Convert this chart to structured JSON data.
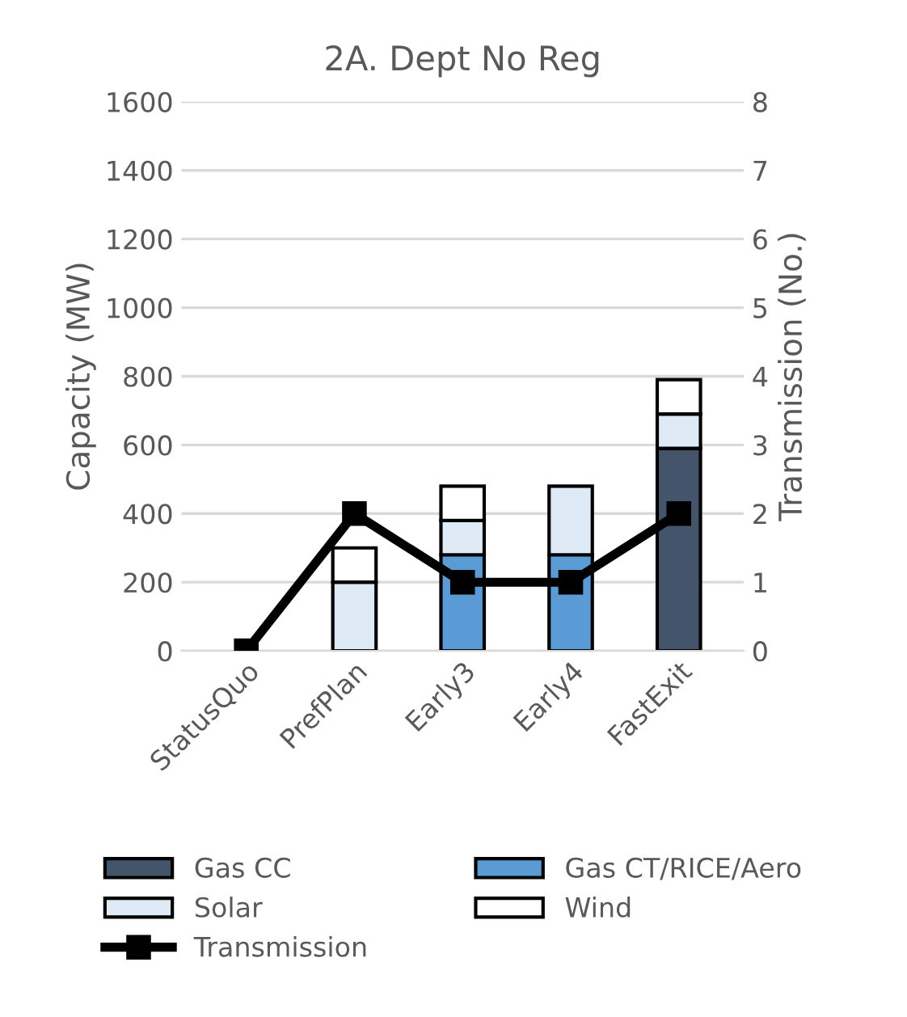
{
  "chart_data": {
    "type": "bar",
    "title": "2A. Dept No Reg",
    "ylabel": "Capacity (MW)",
    "y2label": "Transmission (No.)",
    "categories": [
      "StatusQuo",
      "PrefPlan",
      "Early3",
      "Early4",
      "FastExit"
    ],
    "stacked": true,
    "series": [
      {
        "name": "Gas CC",
        "color": "#44546a",
        "values": [
          null,
          null,
          null,
          null,
          590
        ]
      },
      {
        "name": "Gas CT/RICE/Aero",
        "color": "#5b9bd5",
        "values": [
          null,
          null,
          280,
          280,
          null
        ]
      },
      {
        "name": "Solar",
        "color": "#deebf7",
        "values": [
          null,
          200,
          100,
          200,
          100
        ]
      },
      {
        "name": "Wind",
        "color": "#ffffff",
        "values": [
          null,
          100,
          100,
          null,
          100
        ]
      },
      {
        "name": "Transmission",
        "type": "line",
        "axis": "y2",
        "color": "#000000",
        "marker": "square",
        "values": [
          0,
          2,
          1,
          1,
          2
        ]
      }
    ],
    "ylim": [
      0,
      1600
    ],
    "yticks": [
      0,
      200,
      400,
      600,
      800,
      1000,
      1200,
      1400,
      1600
    ],
    "y2lim": [
      0,
      8
    ],
    "y2ticks": [
      0,
      1,
      2,
      3,
      4,
      5,
      6,
      7,
      8
    ],
    "grid": "y",
    "legend": "bottom"
  }
}
